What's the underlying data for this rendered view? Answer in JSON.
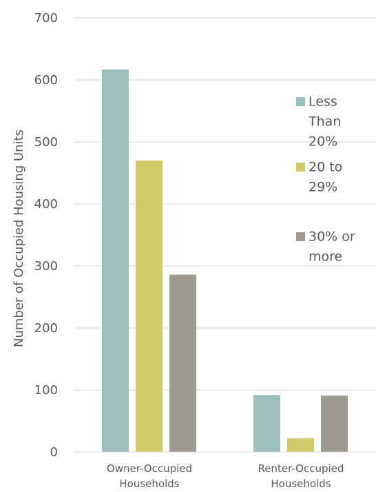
{
  "chart_data": {
    "type": "bar",
    "ylabel": "Number of Occupied Housing Units",
    "ylim": [
      0,
      700
    ],
    "yticks": [
      "0",
      "100",
      "200",
      "300",
      "400",
      "500",
      "600",
      "700"
    ],
    "categories": [
      [
        "Owner-Occupied",
        "Households"
      ],
      [
        "Renter-Occupied",
        "Households"
      ]
    ],
    "series": [
      {
        "name": [
          "Less",
          "Than",
          "20%"
        ],
        "color": "#9bbfbd",
        "values": [
          617,
          92
        ]
      },
      {
        "name": [
          "20 to",
          "29%"
        ],
        "color": "#d1ca68",
        "values": [
          470,
          22
        ]
      },
      {
        "name": [
          "30% or",
          "more"
        ],
        "color": "#9e9a90",
        "values": [
          286,
          91
        ]
      }
    ],
    "grid": true,
    "legend": "right"
  }
}
